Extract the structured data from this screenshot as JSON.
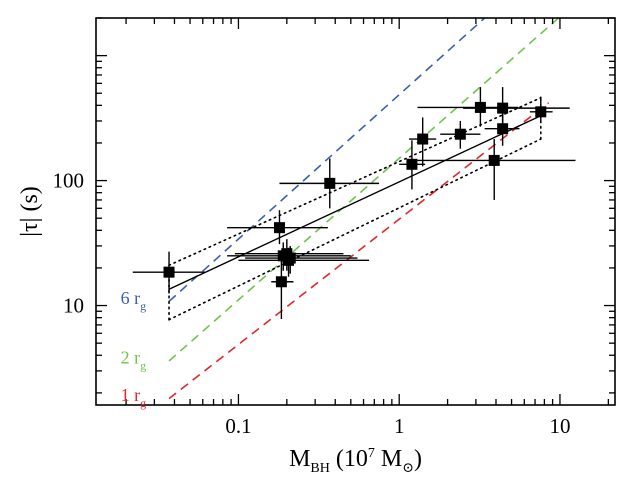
{
  "chart_data": {
    "type": "scatter",
    "xscale": "log",
    "yscale": "log",
    "xlim": [
      0.013,
      22
    ],
    "ylim": [
      1.6,
      2000
    ],
    "grid": false,
    "xticks": [
      {
        "value": 0.1,
        "label": "0.1"
      },
      {
        "value": 1,
        "label": "1"
      },
      {
        "value": 10,
        "label": "10"
      }
    ],
    "yticks": [
      {
        "value": 10,
        "label": "10"
      },
      {
        "value": 100,
        "label": "100"
      }
    ],
    "xlabel": {
      "base": "M",
      "sub": "BH",
      "mid": " (10",
      "sup": "7",
      "tail": " M",
      "sub2": "⊙",
      "close": ")"
    },
    "ylabel": {
      "text": "|τ| (s)"
    },
    "points": [
      {
        "x": 0.037,
        "y": 18.5,
        "xlo": 0.022,
        "xhi": 0.062,
        "ylo": 12.5,
        "yhi": 27
      },
      {
        "x": 0.18,
        "y": 42,
        "xlo": 0.085,
        "xhi": 0.36,
        "ylo": 31,
        "yhi": 58
      },
      {
        "x": 0.19,
        "y": 25,
        "xlo": 0.085,
        "xhi": 0.5,
        "ylo": 19,
        "yhi": 32
      },
      {
        "x": 0.2,
        "y": 26,
        "xlo": 0.095,
        "xhi": 0.45,
        "ylo": 19,
        "yhi": 34
      },
      {
        "x": 0.21,
        "y": 24,
        "xlo": 0.11,
        "xhi": 0.55,
        "ylo": 18,
        "yhi": 30
      },
      {
        "x": 0.205,
        "y": 23,
        "xlo": 0.1,
        "xhi": 0.65,
        "ylo": 17,
        "yhi": 29
      },
      {
        "x": 0.185,
        "y": 15.5,
        "xlo": 0.16,
        "xhi": 0.22,
        "ylo": 7.8,
        "yhi": 25
      },
      {
        "x": 0.37,
        "y": 95,
        "xlo": 0.18,
        "xhi": 0.75,
        "ylo": 60,
        "yhi": 150
      },
      {
        "x": 1.2,
        "y": 135,
        "xlo": 1.0,
        "xhi": 1.45,
        "ylo": 85,
        "yhi": 210
      },
      {
        "x": 1.4,
        "y": 215,
        "xlo": 1.15,
        "xhi": 1.7,
        "ylo": 130,
        "yhi": 320
      },
      {
        "x": 2.4,
        "y": 235,
        "xlo": 1.8,
        "xhi": 3.2,
        "ylo": 180,
        "yhi": 300
      },
      {
        "x": 3.2,
        "y": 385,
        "xlo": 1.3,
        "xhi": 5.5,
        "ylo": 270,
        "yhi": 560
      },
      {
        "x": 4.4,
        "y": 380,
        "xlo": 2.5,
        "xhi": 11.5,
        "ylo": 290,
        "yhi": 560
      },
      {
        "x": 4.4,
        "y": 260,
        "xlo": 3.4,
        "xhi": 5.6,
        "ylo": 190,
        "yhi": 370
      },
      {
        "x": 3.9,
        "y": 145,
        "xlo": 1.3,
        "xhi": 12.5,
        "ylo": 70,
        "yhi": 215
      },
      {
        "x": 7.6,
        "y": 355,
        "xlo": 6.5,
        "xhi": 9.0,
        "ylo": 290,
        "yhi": 470
      }
    ],
    "fit": {
      "x": [
        0.037,
        7.6
      ],
      "y": [
        13.5,
        330
      ],
      "band_upper": {
        "x": [
          0.037,
          7.6
        ],
        "y": [
          21,
          460
        ]
      },
      "band_lower": {
        "x": [
          0.037,
          7.6
        ],
        "y": [
          7.7,
          215
        ]
      },
      "color": "#000000"
    },
    "reference_lines": [
      {
        "name": "6 rg",
        "color": "#3a5fb0",
        "x": [
          0.037,
          3.4
        ],
        "y": [
          10.8,
          2000
        ],
        "label": {
          "base": "6 r",
          "sub": "g"
        },
        "label_x": 0.0185,
        "label_y": 10.3
      },
      {
        "name": "2 rg",
        "color": "#6ec44e",
        "x": [
          0.037,
          9.8
        ],
        "y": [
          3.6,
          2000
        ],
        "label": {
          "base": "2 r",
          "sub": "g"
        },
        "label_x": 0.0185,
        "label_y": 3.45
      },
      {
        "name": "1 rg",
        "color": "#e3262d",
        "x": [
          0.037,
          8.5
        ],
        "y": [
          1.8,
          420
        ],
        "label": {
          "base": "1 r",
          "sub": "g"
        },
        "label_x": 0.0185,
        "label_y": 1.73
      }
    ]
  }
}
